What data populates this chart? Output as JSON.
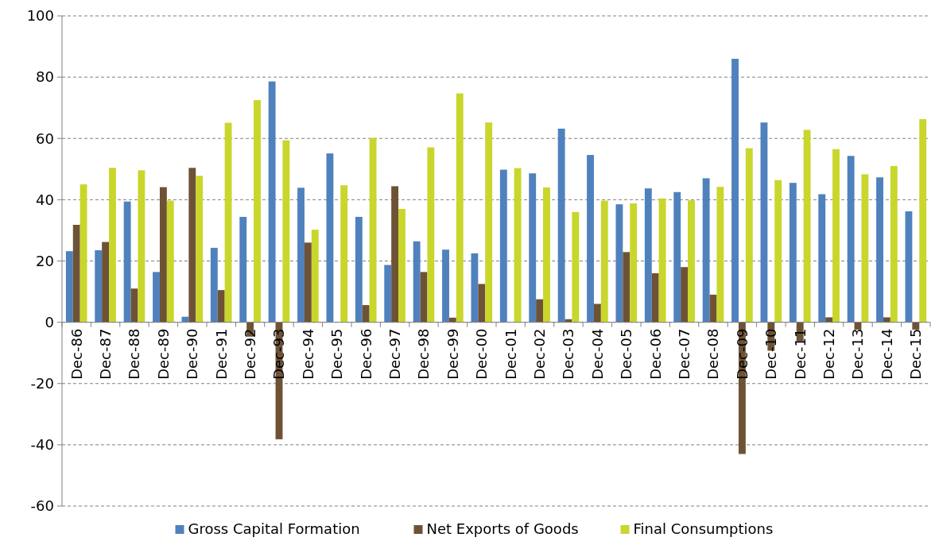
{
  "chart_data": {
    "type": "bar",
    "categories": [
      "Dec-86",
      "Dec-87",
      "Dec-88",
      "Dec-89",
      "Dec-90",
      "Dec-91",
      "Dec-92",
      "Dec-93",
      "Dec-94",
      "Dec-95",
      "Dec-96",
      "Dec-97",
      "Dec-98",
      "Dec-99",
      "Dec-00",
      "Dec-01",
      "Dec-02",
      "Dec-03",
      "Dec-04",
      "Dec-05",
      "Dec-06",
      "Dec-07",
      "Dec-08",
      "Dec-09",
      "Dec-10",
      "Dec-11",
      "Dec-12",
      "Dec-13",
      "Dec-14",
      "Dec-15"
    ],
    "series": [
      {
        "name": "Gross Capital Formation",
        "color": "#4f81bd",
        "values": [
          23.2,
          23.5,
          39.4,
          16.4,
          1.8,
          24.3,
          34.4,
          78.6,
          43.9,
          55.1,
          34.4,
          18.7,
          26.4,
          23.7,
          22.5,
          49.8,
          48.6,
          63.2,
          54.6,
          38.5,
          43.7,
          42.5,
          47,
          86,
          65.2,
          45.5,
          41.8,
          54.3,
          47.3,
          36.2
        ]
      },
      {
        "name": "Net Exports of Goods",
        "color": "#6e5236",
        "values": [
          31.8,
          26.2,
          11,
          44.1,
          50.4,
          10.5,
          -4.7,
          -38.2,
          26,
          null,
          5.6,
          44.4,
          16.4,
          1.5,
          12.5,
          null,
          7.5,
          1,
          6,
          22.9,
          16,
          18,
          9,
          -43,
          -9.3,
          -6.2,
          1.6,
          -2.4,
          1.6,
          -2.4
        ]
      },
      {
        "name": "Final Consumptions",
        "color": "#c9d62c",
        "values": [
          45,
          50.4,
          49.6,
          39.7,
          47.8,
          65.1,
          72.5,
          59.4,
          30.2,
          44.7,
          60.2,
          37,
          57.1,
          74.7,
          65.2,
          50.3,
          44,
          36,
          39.7,
          38.8,
          40.4,
          39.8,
          44.2,
          56.8,
          46.4,
          62.8,
          56.5,
          48.3,
          51,
          66.3
        ]
      }
    ],
    "ylim": [
      -60,
      100
    ],
    "yticks": [
      -60,
      -40,
      -20,
      0,
      20,
      40,
      60,
      80,
      100
    ],
    "grid": "y",
    "legend": "bottom"
  }
}
